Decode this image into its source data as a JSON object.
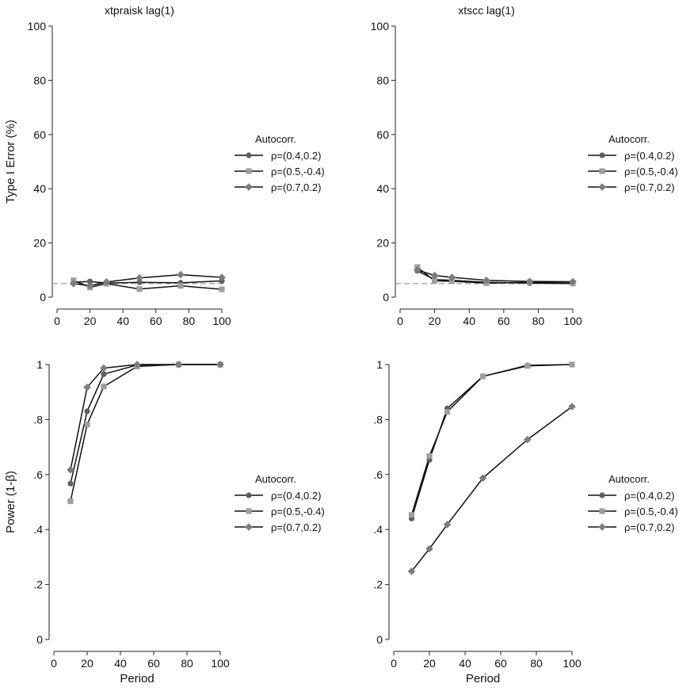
{
  "figure": {
    "legend_title": "Autocorr.",
    "series_names": [
      "ρ=(0.4,0.2)",
      "ρ=(0.5,-0.4)",
      "ρ=(0.7,0.2)"
    ],
    "series_colors": [
      "#5f5f5f",
      "#9e9e9e",
      "#7c7c7c"
    ],
    "line_color": "#111111",
    "reference_line_color": "#9a9a9a"
  },
  "chart_data": [
    {
      "type": "line",
      "title": "xtpraisk lag(1)",
      "xlabel": "",
      "ylabel": "Type I Error (%)",
      "xlim": [
        0,
        100
      ],
      "ylim": [
        0,
        100
      ],
      "xticks": [
        "0",
        "20",
        "40",
        "60",
        "80",
        "100"
      ],
      "yticks": [
        "0",
        "20",
        "40",
        "60",
        "80",
        "100"
      ],
      "reference_line": 5,
      "x": [
        10,
        20,
        30,
        50,
        75,
        100
      ],
      "series": [
        {
          "name": "ρ=(0.4,0.2)",
          "marker": "circle",
          "values": [
            5.5,
            5.8,
            5.2,
            5.5,
            5.3,
            6.0
          ]
        },
        {
          "name": "ρ=(0.5,-0.4)",
          "marker": "square",
          "values": [
            6.2,
            3.6,
            5.0,
            3.0,
            4.2,
            2.9
          ]
        },
        {
          "name": "ρ=(0.7,0.2)",
          "marker": "diamond",
          "values": [
            5.0,
            4.2,
            5.6,
            7.1,
            8.3,
            7.3
          ]
        }
      ],
      "legend": "right",
      "grid": false
    },
    {
      "type": "line",
      "title": "xtscc lag(1)",
      "xlabel": "",
      "ylabel": "",
      "xlim": [
        0,
        100
      ],
      "ylim": [
        0,
        100
      ],
      "xticks": [
        "0",
        "20",
        "40",
        "60",
        "80",
        "100"
      ],
      "yticks": [
        "0",
        "20",
        "40",
        "60",
        "80",
        "100"
      ],
      "reference_line": 5,
      "x": [
        10,
        20,
        30,
        50,
        75,
        100
      ],
      "series": [
        {
          "name": "ρ=(0.4,0.2)",
          "marker": "circle",
          "values": [
            9.7,
            6.5,
            6.2,
            5.5,
            5.2,
            5.0
          ]
        },
        {
          "name": "ρ=(0.5,-0.4)",
          "marker": "square",
          "values": [
            11.1,
            6.0,
            5.9,
            5.2,
            5.5,
            5.2
          ]
        },
        {
          "name": "ρ=(0.7,0.2)",
          "marker": "diamond",
          "values": [
            10.0,
            8.0,
            7.3,
            6.2,
            5.8,
            5.7
          ]
        }
      ],
      "legend": "right",
      "grid": false
    },
    {
      "type": "line",
      "title": "",
      "xlabel": "Period",
      "ylabel": "Power (1-β)",
      "xlim": [
        0,
        100
      ],
      "ylim": [
        0,
        1
      ],
      "xticks": [
        "0",
        "20",
        "40",
        "60",
        "80",
        "100"
      ],
      "yticks": [
        "0",
        ".2",
        ".4",
        ".6",
        ".8",
        "1"
      ],
      "x": [
        10,
        20,
        30,
        50,
        75,
        100
      ],
      "series": [
        {
          "name": "ρ=(0.4,0.2)",
          "marker": "circle",
          "values": [
            0.567,
            0.83,
            0.965,
            0.998,
            1.0,
            1.0
          ]
        },
        {
          "name": "ρ=(0.5,-0.4)",
          "marker": "square",
          "values": [
            0.503,
            0.782,
            0.92,
            0.993,
            1.0,
            1.0
          ]
        },
        {
          "name": "ρ=(0.7,0.2)",
          "marker": "diamond",
          "values": [
            0.617,
            0.917,
            0.987,
            1.0,
            1.0,
            1.0
          ]
        }
      ],
      "legend": "right",
      "grid": false
    },
    {
      "type": "line",
      "title": "",
      "xlabel": "Period",
      "ylabel": "",
      "xlim": [
        0,
        100
      ],
      "ylim": [
        0,
        1
      ],
      "xticks": [
        "0",
        "20",
        "40",
        "60",
        "80",
        "100"
      ],
      "yticks": [
        "0",
        ".2",
        ".4",
        ".6",
        ".8",
        "1"
      ],
      "x": [
        10,
        20,
        30,
        50,
        75,
        100
      ],
      "series": [
        {
          "name": "ρ=(0.4,0.2)",
          "marker": "circle",
          "values": [
            0.44,
            0.653,
            0.84,
            0.957,
            0.997,
            1.0
          ]
        },
        {
          "name": "ρ=(0.5,-0.4)",
          "marker": "square",
          "values": [
            0.453,
            0.667,
            0.828,
            0.957,
            0.995,
            1.0
          ]
        },
        {
          "name": "ρ=(0.7,0.2)",
          "marker": "diamond",
          "values": [
            0.248,
            0.33,
            0.418,
            0.587,
            0.727,
            0.847
          ]
        }
      ],
      "legend": "right",
      "grid": false
    }
  ]
}
